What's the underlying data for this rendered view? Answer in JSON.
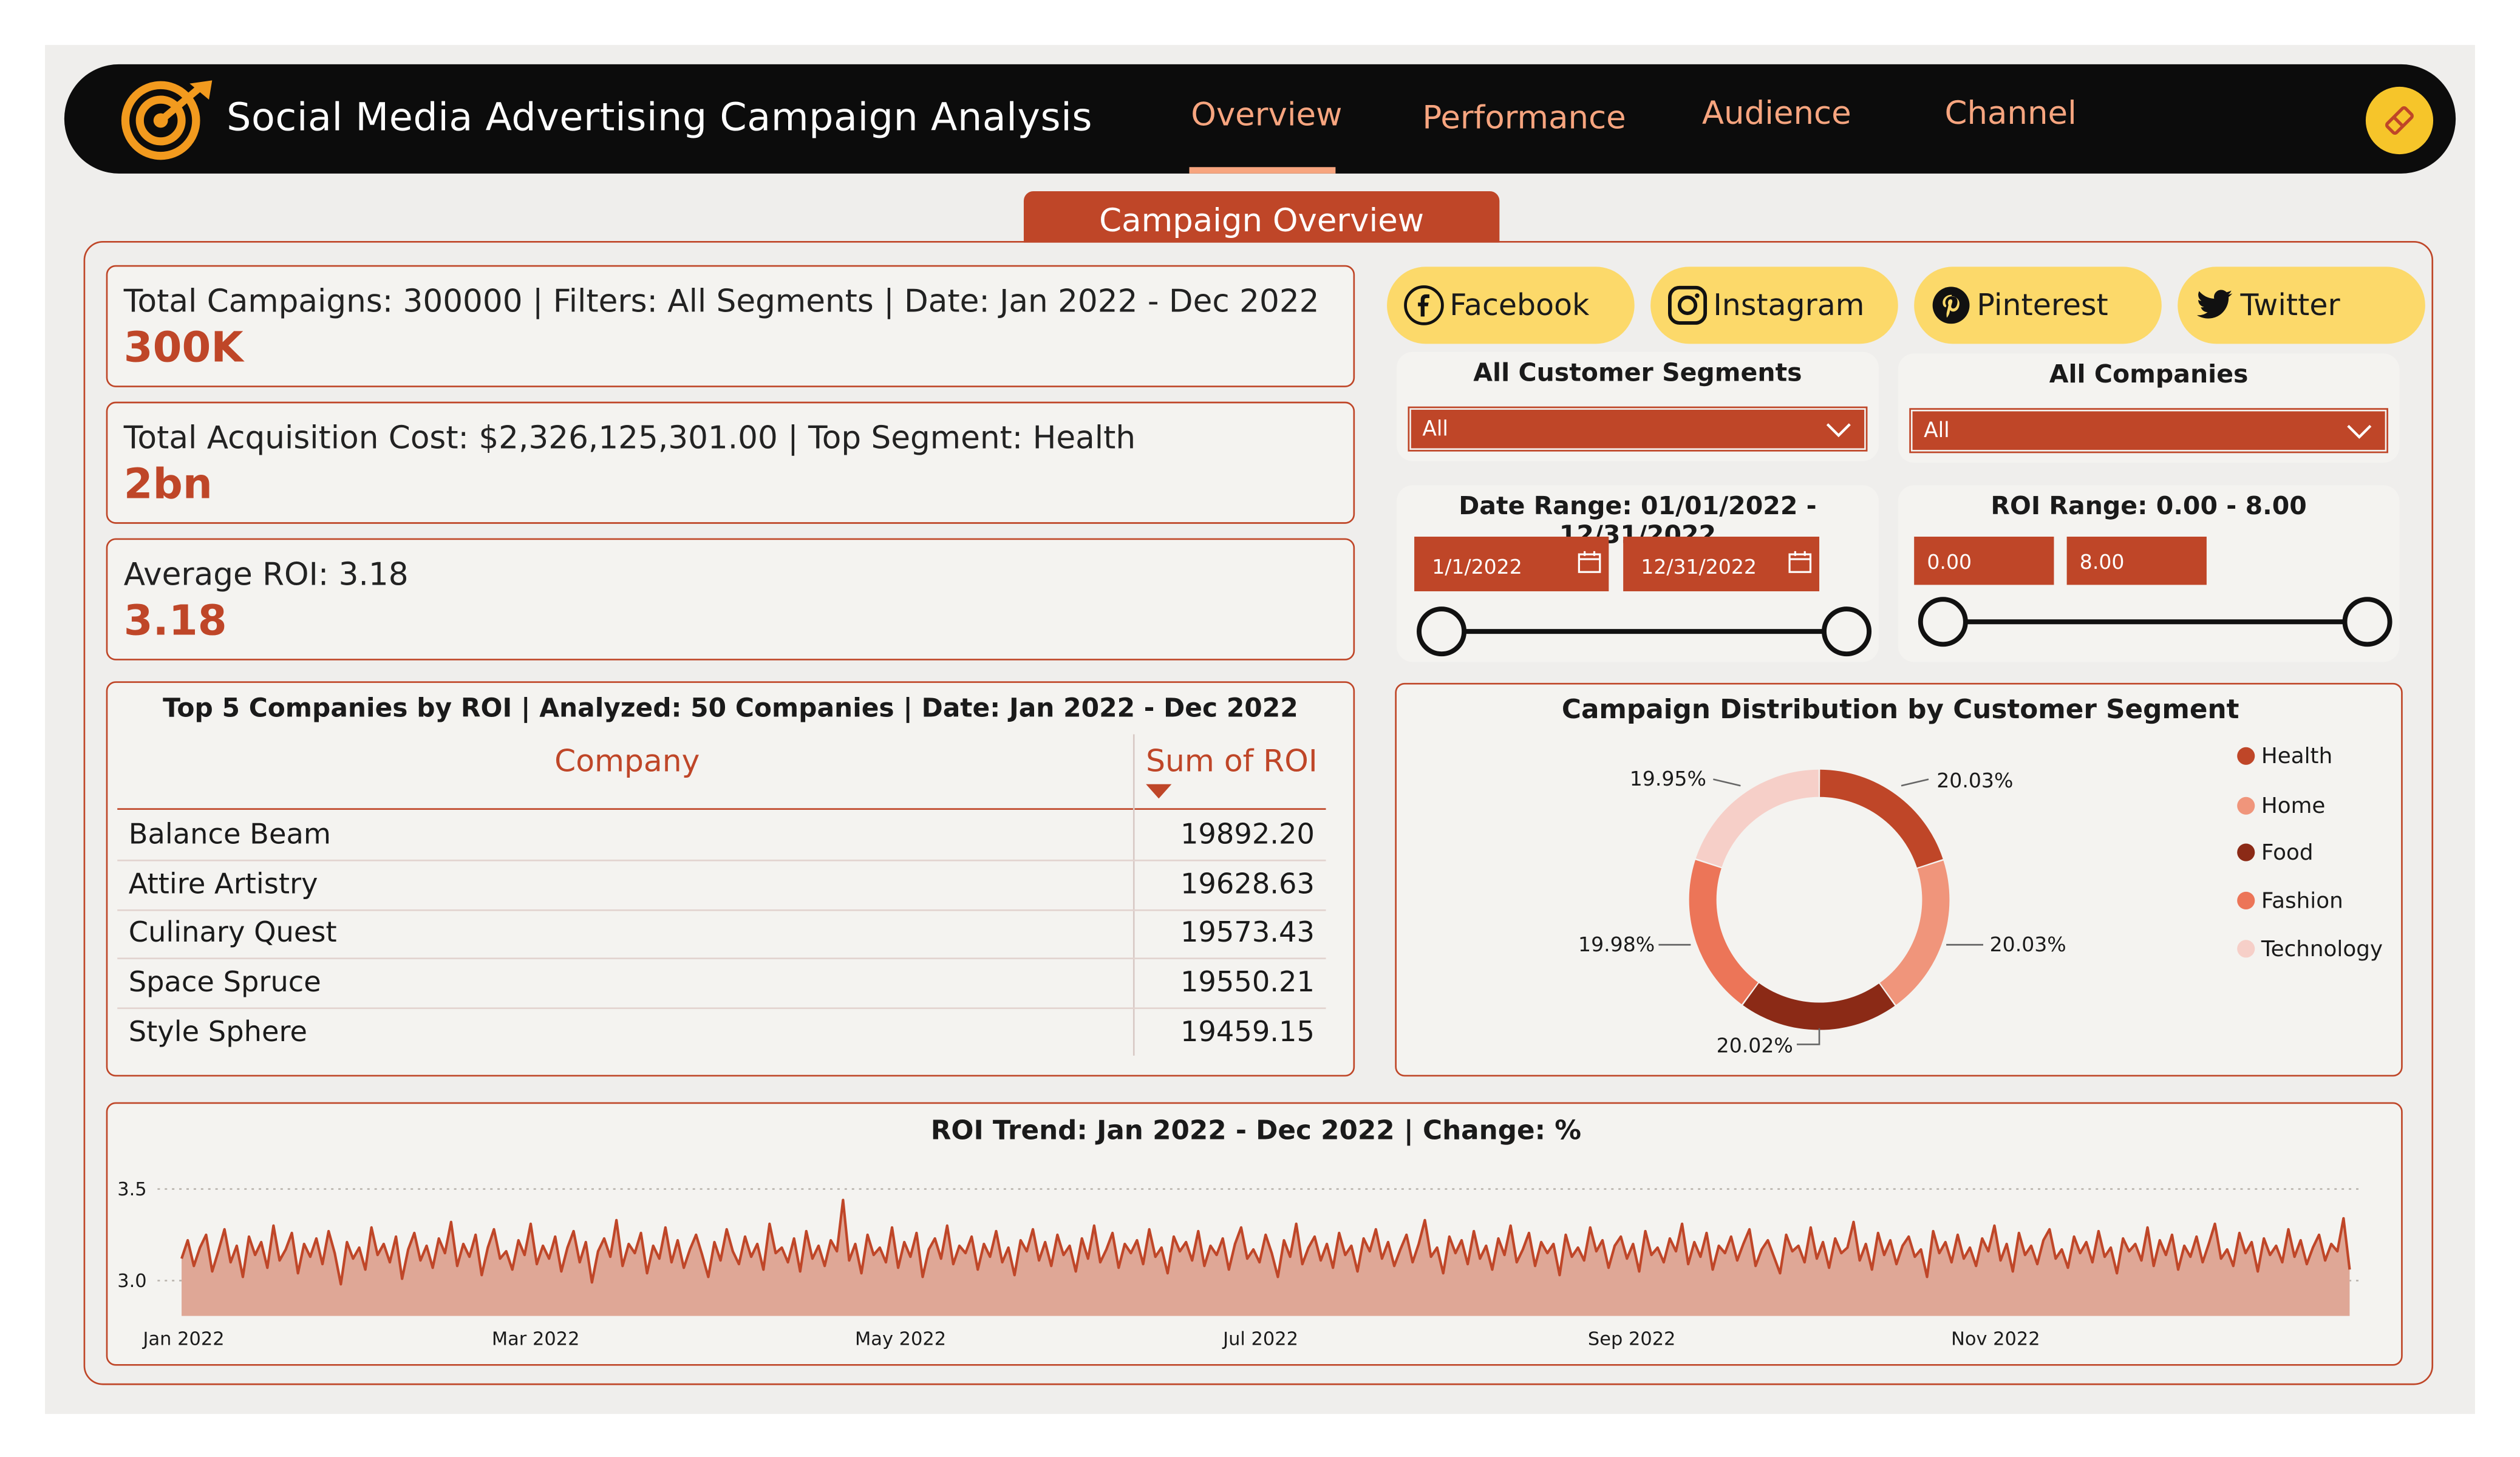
{
  "app": {
    "title": "Social Media Advertising Campaign Analysis"
  },
  "nav": {
    "tabs": [
      "Overview",
      "Performance",
      "Audience",
      "Channel"
    ],
    "active": "Overview"
  },
  "section_tab": "Campaign Overview",
  "kpis": [
    {
      "label": "Total Campaigns: 300000 | Filters: All Segments | Date: Jan 2022 - Dec 2022",
      "value": "300K"
    },
    {
      "label": "Total Acquisition Cost: $2,326,125,301.00 | Top Segment: Health",
      "value": "2bn"
    },
    {
      "label": "Average ROI: 3.18",
      "value": "3.18"
    }
  ],
  "channels": [
    {
      "label": "Facebook",
      "icon": "facebook-icon"
    },
    {
      "label": "Instagram",
      "icon": "instagram-icon"
    },
    {
      "label": "Pinterest",
      "icon": "pinterest-icon"
    },
    {
      "label": "Twitter",
      "icon": "twitter-icon"
    }
  ],
  "filters": {
    "segments": {
      "title": "All Customer Segments",
      "value": "All"
    },
    "companies": {
      "title": "All Companies",
      "value": "All"
    },
    "date_range": {
      "title": "Date Range: 01/01/2022 - 12/31/2022",
      "start": "1/1/2022",
      "end": "12/31/2022",
      "min_fraction": 0.0,
      "max_fraction": 1.0
    },
    "roi_range": {
      "title": "ROI Range: 0.00 - 8.00",
      "min": "0.00",
      "max": "8.00",
      "min_fraction": 0.0,
      "max_fraction": 1.0
    }
  },
  "top_companies": {
    "title": "Top 5 Companies by ROI | Analyzed: 50 Companies | Date: Jan 2022 - Dec 2022",
    "columns": [
      "Company",
      "Sum of ROI"
    ],
    "rows": [
      {
        "company": "Balance Beam",
        "roi": "19892.20"
      },
      {
        "company": "Attire Artistry",
        "roi": "19628.63"
      },
      {
        "company": "Culinary Quest",
        "roi": "19573.43"
      },
      {
        "company": "Space Spruce",
        "roi": "19550.21"
      },
      {
        "company": "Style Sphere",
        "roi": "19459.15"
      }
    ]
  },
  "colors": {
    "accent": "#bf4628",
    "header_bg": "#0c0c0c",
    "nav_text": "#f7a57f",
    "button_yellow": "#fcd96a",
    "health": "#bf4628",
    "home": "#f0957b",
    "food": "#8b2a16",
    "fashion": "#ec7558",
    "technology": "#f6cfc8"
  },
  "chart_data": [
    {
      "type": "pie",
      "title": "Campaign Distribution by Customer Segment",
      "categories": [
        "Health",
        "Home",
        "Food",
        "Fashion",
        "Technology"
      ],
      "values": [
        20.03,
        20.03,
        20.02,
        19.98,
        19.95
      ],
      "labels": [
        "20.03%",
        "20.03%",
        "20.02%",
        "19.98%",
        "19.95%"
      ],
      "legend": "right"
    },
    {
      "type": "area",
      "title": "ROI Trend: Jan 2022 - Dec 2022 | Change: %",
      "x_tick_labels": [
        "Jan 2022",
        "Mar 2022",
        "May 2022",
        "Jul 2022",
        "Sep 2022",
        "Nov 2022"
      ],
      "y_tick_labels": [
        "3.5",
        "3.0"
      ],
      "ylim": [
        2.8,
        3.55
      ],
      "x_range": [
        "2022-01-01",
        "2022-12-31"
      ],
      "grid": "dotted horizontal",
      "values": [
        3.12,
        3.22,
        3.08,
        3.18,
        3.25,
        3.05,
        3.16,
        3.28,
        3.1,
        3.19,
        3.02,
        3.24,
        3.14,
        3.21,
        3.07,
        3.3,
        3.11,
        3.17,
        3.26,
        3.04,
        3.2,
        3.13,
        3.23,
        3.09,
        3.27,
        3.15,
        2.98,
        3.21,
        3.12,
        3.18,
        3.06,
        3.29,
        3.14,
        3.2,
        3.1,
        3.24,
        3.01,
        3.17,
        3.26,
        3.11,
        3.19,
        3.07,
        3.23,
        3.15,
        3.32,
        3.08,
        3.2,
        3.13,
        3.25,
        3.03,
        3.18,
        3.28,
        3.12,
        3.16,
        3.06,
        3.22,
        3.14,
        3.31,
        3.09,
        3.19,
        3.12,
        3.24,
        3.05,
        3.18,
        3.27,
        3.1,
        3.21,
        2.99,
        3.16,
        3.23,
        3.13,
        3.33,
        3.08,
        3.2,
        3.15,
        3.26,
        3.04,
        3.19,
        3.12,
        3.29,
        3.1,
        3.22,
        3.07,
        3.17,
        3.25,
        3.14,
        3.02,
        3.21,
        3.11,
        3.28,
        3.16,
        3.09,
        3.24,
        3.13,
        3.2,
        3.06,
        3.31,
        3.15,
        3.18,
        3.1,
        3.23,
        3.05,
        3.27,
        3.12,
        3.19,
        3.08,
        3.22,
        3.16,
        3.44,
        3.11,
        3.2,
        3.04,
        3.25,
        3.14,
        3.18,
        3.1,
        3.29,
        3.07,
        3.21,
        3.13,
        3.26,
        3.02,
        3.17,
        3.23,
        3.12,
        3.3,
        3.09,
        3.19,
        3.15,
        3.24,
        3.06,
        3.2,
        3.13,
        3.27,
        3.1,
        3.18,
        3.03,
        3.22,
        3.16,
        3.28,
        3.11,
        3.21,
        3.08,
        3.25,
        3.14,
        3.19,
        3.05,
        3.23,
        3.12,
        3.3,
        3.1,
        3.17,
        3.26,
        3.07,
        3.2,
        3.15,
        3.22,
        3.09,
        3.28,
        3.13,
        3.18,
        3.04,
        3.24,
        3.16,
        3.21,
        3.11,
        3.27,
        3.08,
        3.19,
        3.14,
        3.23,
        3.06,
        3.2,
        3.29,
        3.12,
        3.17,
        3.1,
        3.25,
        3.15,
        3.02,
        3.22,
        3.13,
        3.31,
        3.09,
        3.18,
        3.24,
        3.11,
        3.2,
        3.07,
        3.26,
        3.14,
        3.19,
        3.05,
        3.23,
        3.16,
        3.28,
        3.12,
        3.21,
        3.08,
        3.17,
        3.25,
        3.1,
        3.2,
        3.33,
        3.13,
        3.18,
        3.04,
        3.24,
        3.15,
        3.22,
        3.09,
        3.27,
        3.12,
        3.19,
        3.06,
        3.23,
        3.14,
        3.3,
        3.1,
        3.17,
        3.26,
        3.08,
        3.21,
        3.15,
        3.2,
        3.03,
        3.25,
        3.13,
        3.18,
        3.11,
        3.29,
        3.16,
        3.22,
        3.07,
        3.19,
        3.24,
        3.12,
        3.2,
        3.05,
        3.27,
        3.14,
        3.18,
        3.1,
        3.23,
        3.16,
        3.31,
        3.09,
        3.21,
        3.13,
        3.26,
        3.06,
        3.19,
        3.15,
        3.24,
        3.11,
        3.2,
        3.28,
        3.08,
        3.17,
        3.22,
        3.13,
        3.04,
        3.25,
        3.16,
        3.19,
        3.1,
        3.29,
        3.12,
        3.21,
        3.07,
        3.23,
        3.15,
        3.18,
        3.32,
        3.11,
        3.2,
        3.06,
        3.26,
        3.14,
        3.22,
        3.09,
        3.19,
        3.24,
        3.13,
        3.17,
        3.02,
        3.27,
        3.15,
        3.21,
        3.1,
        3.25,
        3.12,
        3.18,
        3.08,
        3.23,
        3.16,
        3.3,
        3.11,
        3.2,
        3.05,
        3.26,
        3.14,
        3.19,
        3.09,
        3.22,
        3.28,
        3.12,
        3.17,
        3.07,
        3.24,
        3.15,
        3.21,
        3.1,
        3.27,
        3.13,
        3.18,
        3.04,
        3.23,
        3.16,
        3.2,
        3.11,
        3.29,
        3.08,
        3.22,
        3.14,
        3.25,
        3.06,
        3.19,
        3.13,
        3.24,
        3.1,
        3.2,
        3.31,
        3.12,
        3.17,
        3.08,
        3.26,
        3.15,
        3.21,
        3.05,
        3.23,
        3.14,
        3.19,
        3.1,
        3.28,
        3.13,
        3.22,
        3.09,
        3.18,
        3.25,
        3.11,
        3.2,
        3.16,
        3.34,
        3.06
      ]
    }
  ]
}
